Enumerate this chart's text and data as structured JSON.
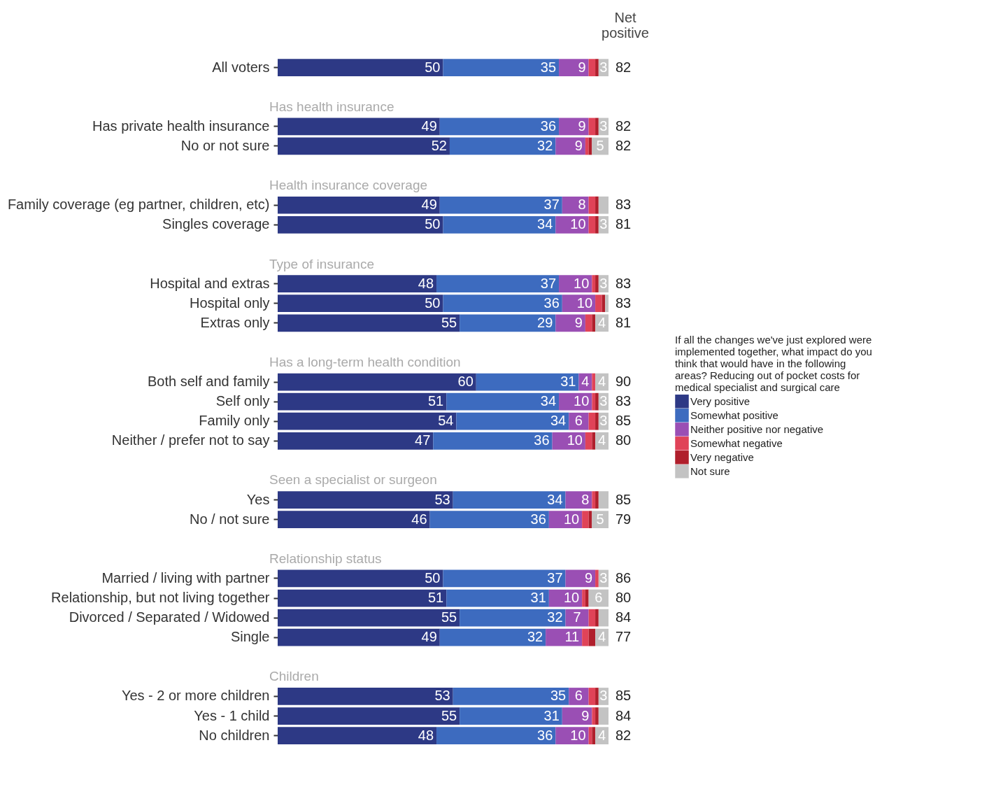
{
  "chart_data": {
    "type": "bar",
    "orientation": "horizontal",
    "stacked": true,
    "tick_labels": "y",
    "legend": "right",
    "legend_title": "If all the changes we've just explored were implemented together, what impact do you think that would have in the following areas? Reducing out of pocket costs for medical specialist and surgical care",
    "categories": [
      "All voters",
      "Has private health insurance",
      "No or not sure",
      "Family coverage (eg partner, children, etc)",
      "Singles coverage",
      "Hospital and extras",
      "Hospital only",
      "Extras only",
      "Both self and family",
      "Self only",
      "Family only",
      "Neither / prefer not to say",
      "Yes",
      "No / not sure",
      "Married / living with  partner",
      "Relationship, but not living together",
      "Divorced / Separated / Widowed",
      "Single",
      "Yes - 2 or more children",
      "Yes - 1 child",
      "No children"
    ],
    "series": [
      {
        "name": "Very positive",
        "color": "#2d3985",
        "values": [
          50,
          49,
          52,
          49,
          50,
          48,
          50,
          55,
          60,
          51,
          54,
          47,
          53,
          46,
          50,
          51,
          55,
          49,
          53,
          55,
          48
        ],
        "value_labels": [
          "50",
          "49",
          "52",
          "49",
          "50",
          "48",
          "50",
          "55",
          "60",
          "51",
          "54",
          "47",
          "53",
          "46",
          "50",
          "51",
          "55",
          "49",
          "53",
          "55",
          "48"
        ]
      },
      {
        "name": "Somewhat positive",
        "color": "#3d6bbf",
        "values": [
          35,
          36,
          32,
          37,
          34,
          37,
          36,
          29,
          31,
          34,
          34,
          36,
          34,
          36,
          37,
          31,
          32,
          32,
          35,
          31,
          36
        ],
        "value_labels": [
          "35",
          "36",
          "32",
          "37",
          "34",
          "37",
          "36",
          "29",
          "31",
          "34",
          "34",
          "36",
          "34",
          "36",
          "37",
          "31",
          "32",
          "32",
          "35",
          "31",
          "36"
        ]
      },
      {
        "name": "Neither positive nor negative",
        "color": "#9a4fb4",
        "values": [
          9,
          9,
          9,
          8,
          10,
          10,
          10,
          9,
          4,
          10,
          6,
          10,
          8,
          10,
          9,
          10,
          7,
          11,
          6,
          9,
          10
        ],
        "value_labels": [
          "9",
          "9",
          "9",
          "8",
          "10",
          "10",
          "10",
          "9",
          "4",
          "10",
          "6",
          "10",
          "8",
          "10",
          "9",
          "10",
          "7",
          "11",
          "6",
          "9",
          "10"
        ]
      },
      {
        "name": "Somewhat negative",
        "color": "#e04358",
        "values": [
          2,
          2,
          1,
          2,
          2,
          1,
          2,
          2,
          1,
          1,
          2,
          2,
          1,
          2,
          1,
          1,
          2,
          2,
          2,
          1,
          1
        ]
      },
      {
        "name": "Very negative",
        "color": "#b01f2c",
        "values": [
          1,
          1,
          1,
          1,
          1,
          1,
          1,
          1,
          0,
          1,
          1,
          1,
          1,
          1,
          0,
          1,
          1,
          2,
          1,
          1,
          1
        ]
      },
      {
        "name": "Not sure",
        "color": "#c3c3c3",
        "values": [
          3,
          3,
          5,
          3,
          3,
          3,
          1,
          4,
          4,
          3,
          3,
          4,
          3,
          5,
          3,
          6,
          3,
          4,
          3,
          3,
          4
        ],
        "value_labels": [
          "3",
          "3",
          "5",
          null,
          "3",
          "3",
          null,
          "4",
          "4",
          "3",
          "3",
          "4",
          null,
          "5",
          "3",
          "6",
          null,
          "4",
          "3",
          null,
          "4"
        ]
      }
    ],
    "annotations": [
      "Net positive",
      "Has health insurance",
      "Health insurance coverage",
      "Type of insurance",
      "Has a long-term health condition",
      "Seen a specialist or surgeon",
      "Relationship status",
      "Children",
      "82",
      "82",
      "82",
      "83",
      "81",
      "83",
      "83",
      "81",
      "90",
      "83",
      "85",
      "80",
      "85",
      "79",
      "86",
      "80",
      "84",
      "77",
      "85",
      "84",
      "82"
    ]
  }
}
